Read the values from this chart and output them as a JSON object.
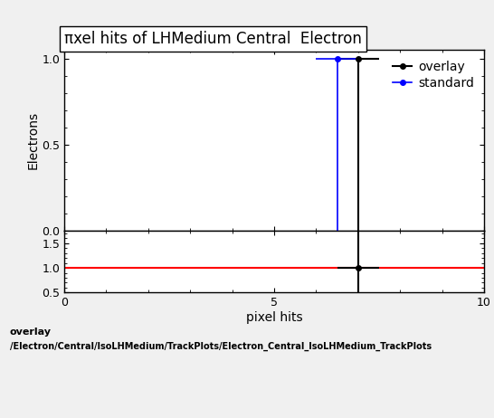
{
  "title": "πxel hits of LHMedium Central  Electron",
  "ylabel_main": "Electrons",
  "xlabel": "pixel hits",
  "xlim": [
    0,
    10
  ],
  "ylim_main": [
    0,
    1.05
  ],
  "ylim_ratio": [
    0.5,
    1.75
  ],
  "ratio_yticks": [
    0.5,
    1.0,
    1.5
  ],
  "main_yticks": [
    0,
    0.5,
    1.0
  ],
  "overlay_x": [
    7.0
  ],
  "overlay_y": [
    1.0
  ],
  "overlay_xerr": [
    0.5
  ],
  "standard_x": [
    6.5
  ],
  "standard_y": [
    1.0
  ],
  "standard_xerr": [
    0.5
  ],
  "overlay_color": "#000000",
  "standard_color": "#0000ff",
  "ratio_line_color": "red",
  "ratio_point_x": [
    7.0
  ],
  "ratio_point_y": [
    1.0
  ],
  "ratio_point_xerr": [
    0.5
  ],
  "ratio_vline_x": 7.0,
  "main_vline_overlay_x": 7.0,
  "main_vline_standard_x": 6.5,
  "legend_entries": [
    "overlay",
    "standard"
  ],
  "footer_line1": "overlay",
  "footer_line2": "/Electron/Central/IsoLHMedium/TrackPlots/Electron_Central_IsoLHMedium_TrackPlots",
  "title_fontsize": 12,
  "axis_label_fontsize": 10,
  "tick_fontsize": 9,
  "legend_fontsize": 10,
  "bg_color": "#f0f0f0"
}
